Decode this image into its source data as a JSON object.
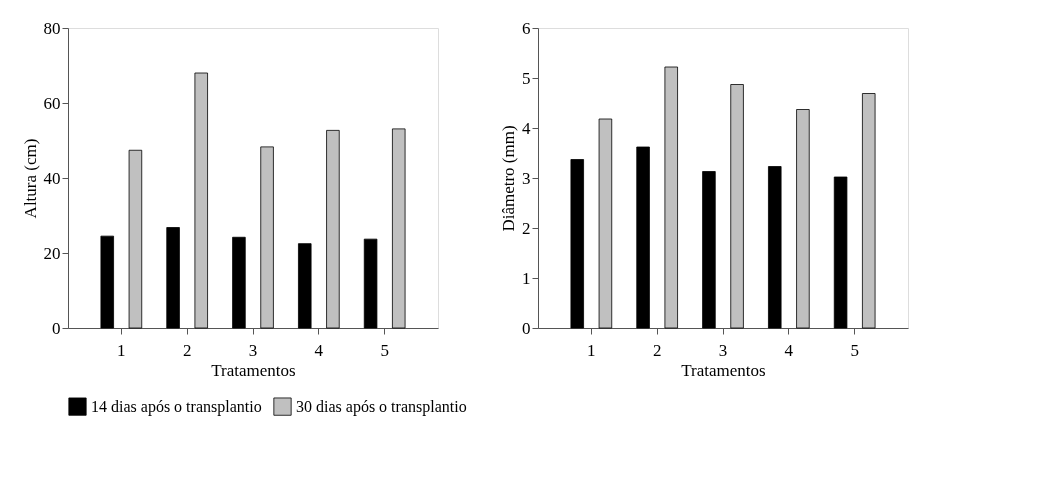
{
  "chart_data": [
    {
      "type": "bar",
      "xlabel": "Tratamentos",
      "ylabel": "Altura (cm)",
      "categories": [
        "1",
        "2",
        "3",
        "4",
        "5"
      ],
      "ylim": [
        0,
        80
      ],
      "yticks": [
        0,
        20,
        40,
        60,
        80
      ],
      "grid": false,
      "legend": "bottom",
      "series": [
        {
          "name": "14 dias após o transplantio",
          "color": "#000000",
          "values": [
            24.5,
            26.8,
            24.2,
            22.5,
            23.7
          ]
        },
        {
          "name": "30 dias após o transplantio",
          "color": "#c0c0c0",
          "values": [
            47.4,
            68.0,
            48.3,
            52.7,
            53.1
          ]
        }
      ]
    },
    {
      "type": "bar",
      "xlabel": "Tratamentos",
      "ylabel": "Diâmetro (mm)",
      "categories": [
        "1",
        "2",
        "3",
        "4",
        "5"
      ],
      "ylim": [
        0,
        6
      ],
      "yticks": [
        0,
        1,
        2,
        3,
        4,
        5,
        6
      ],
      "grid": false,
      "legend": "bottom",
      "series": [
        {
          "name": "14 dias após o transplantio",
          "color": "#000000",
          "values": [
            3.37,
            3.62,
            3.13,
            3.23,
            3.02
          ]
        },
        {
          "name": "30 dias após o transplantio",
          "color": "#c0c0c0",
          "values": [
            4.18,
            5.22,
            4.87,
            4.37,
            4.69
          ]
        }
      ]
    }
  ]
}
